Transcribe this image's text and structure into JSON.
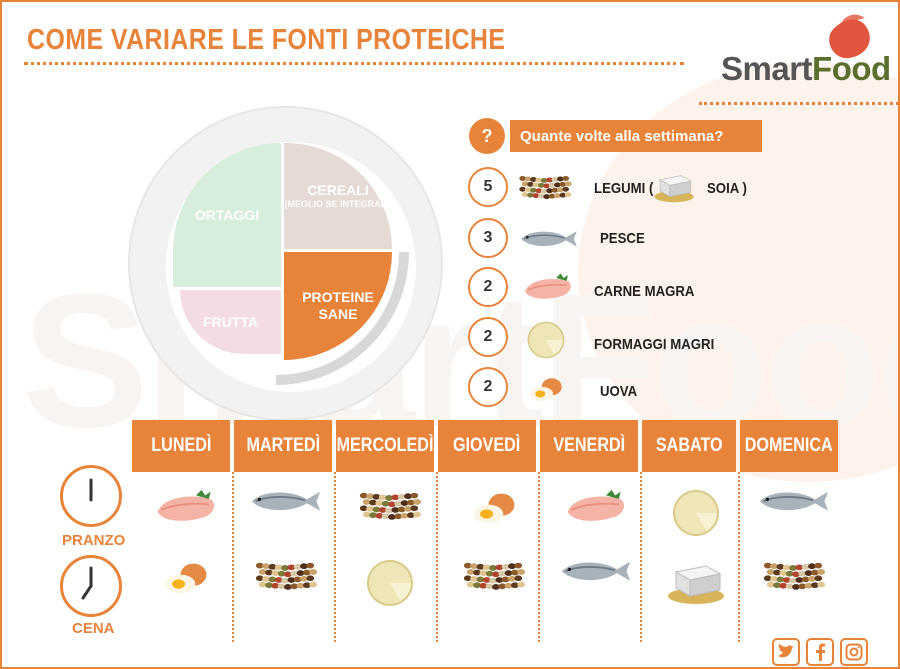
{
  "header": {
    "title": "COME VARIARE LE FONTI PROTEICHE",
    "brand": {
      "part1": "Smart",
      "part2": "Food"
    }
  },
  "plate": {
    "sections": [
      {
        "label": "ORTAGGI"
      },
      {
        "label": "CEREALI",
        "sublabel": "(MEGLIO SE INTEGRALI)"
      },
      {
        "label": "FRUTTA"
      },
      {
        "label": "PROTEINE SANE"
      }
    ]
  },
  "frequency": {
    "question_mark": "?",
    "question": "Quante volte alla settimana?",
    "items": [
      {
        "count": "5",
        "label_a": "LEGUMI (",
        "label_b": "SOIA )",
        "icon": "legumes-icon"
      },
      {
        "count": "3",
        "label_a": "PESCE",
        "icon": "fish-icon"
      },
      {
        "count": "2",
        "label_a": "CARNE MAGRA",
        "icon": "chicken-icon"
      },
      {
        "count": "2",
        "label_a": "FORMAGGI MAGRI",
        "icon": "cheese-icon"
      },
      {
        "count": "2",
        "label_a": "UOVA",
        "icon": "egg-icon"
      }
    ]
  },
  "week": {
    "days": [
      "LUNEDÌ",
      "MARTEDÌ",
      "MERCOLEDÌ",
      "GIOVEDÌ",
      "VENERDÌ",
      "SABATO",
      "DOMENICA"
    ],
    "meals": [
      "PRANZO",
      "CENA"
    ],
    "pranzo": [
      "chicken",
      "fish",
      "legumes",
      "egg",
      "chicken",
      "cheese",
      "fish"
    ],
    "cena": [
      "egg",
      "legumes",
      "cheese",
      "legumes",
      "fish",
      "soy",
      "legumes"
    ]
  },
  "social": [
    "twitter-icon",
    "facebook-icon",
    "instagram-icon"
  ],
  "colors": {
    "accent": "#e8843a",
    "green": "#5a6e2e"
  }
}
